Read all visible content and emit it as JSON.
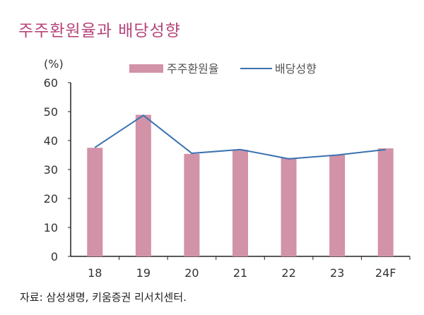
{
  "title": "주주환원율과 배당성향",
  "source": "자료: 삼성생명, 키움증권 리서치센터.",
  "chart_data": {
    "type": "bar+line",
    "title": "주주환원율과 배당성향",
    "ylabel": "(%)",
    "ylim": [
      0,
      60
    ],
    "yticks": [
      0,
      10,
      20,
      30,
      40,
      50,
      60
    ],
    "categories": [
      "18",
      "19",
      "20",
      "21",
      "22",
      "23",
      "24F"
    ],
    "series": [
      {
        "name": "주주환원율",
        "type": "bar",
        "color": "#d292a8",
        "values": [
          37.5,
          48.9,
          35.4,
          36.8,
          34.0,
          35.0,
          37.3
        ]
      },
      {
        "name": "배당성향",
        "type": "line",
        "color": "#3a72b0",
        "values": [
          37.6,
          48.7,
          35.6,
          36.9,
          33.7,
          35.0,
          36.9
        ]
      }
    ],
    "legend": "top",
    "grid": false
  }
}
